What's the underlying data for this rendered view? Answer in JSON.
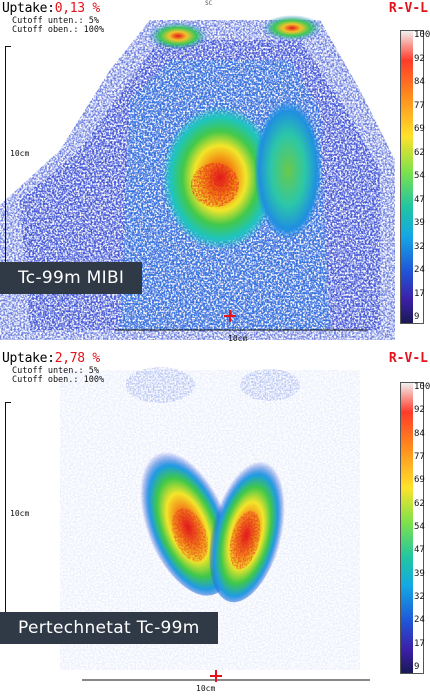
{
  "top": {
    "uptake_label": "Uptake:",
    "uptake_value": "0,13 %",
    "cutoff_lower": "Cutoff unten.: 5%",
    "cutoff_upper": "Cutoff oben.: 100%",
    "orientation": "R-V-L",
    "header_small": "SC",
    "ruler_label": "10cm",
    "bottom_scale": "10cm",
    "caption": "Tc-99m MIBI",
    "scale_ticks": [
      "100",
      "92",
      "84",
      "77",
      "69",
      "62",
      "54",
      "47",
      "39",
      "32",
      "24",
      "17",
      "9"
    ]
  },
  "bottom": {
    "uptake_label": "Uptake:",
    "uptake_value": "2,78 %",
    "cutoff_lower": "Cutoff unten.: 5%",
    "cutoff_upper": "Cutoff oben.: 100%",
    "orientation": "R-V-L",
    "ruler_label": "10cm",
    "bottom_scale": "10cm",
    "caption": "Pertechnetat Tc-99m",
    "scale_ticks": [
      "100",
      "92",
      "84",
      "77",
      "69",
      "62",
      "54",
      "47",
      "39",
      "32",
      "24",
      "17",
      "9"
    ]
  },
  "colors": {
    "uptake_value": "#e3121b",
    "caption_bg": "#2f3a46",
    "marker": "#e3121b"
  }
}
